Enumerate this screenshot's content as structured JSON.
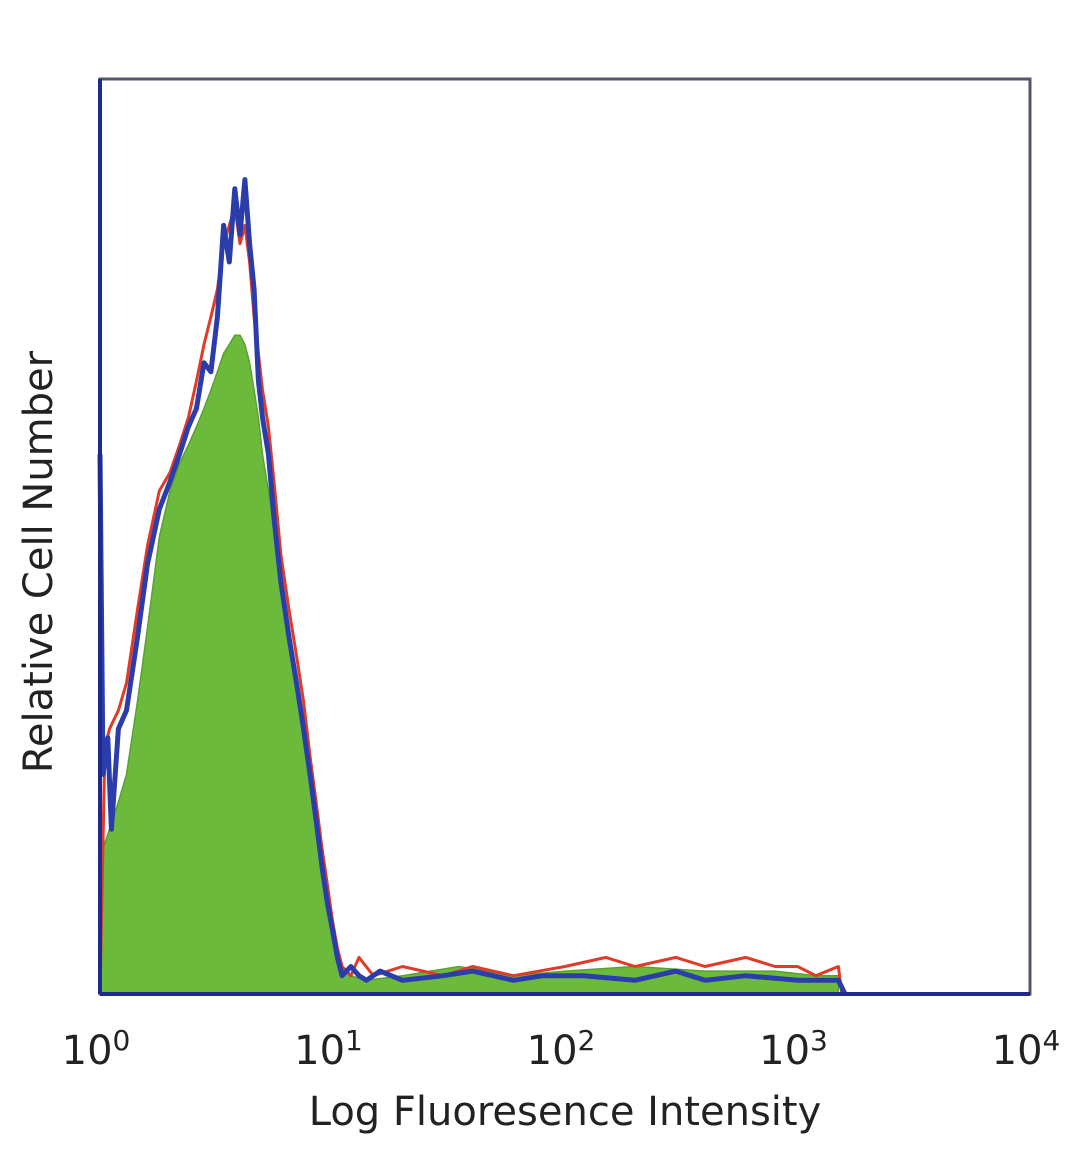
{
  "chart_data": {
    "type": "area",
    "title": "",
    "xlabel": "Log Fluoresence Intensity",
    "ylabel": "Relative Cell Number",
    "x_scale": "log",
    "xlim": [
      1,
      10000
    ],
    "ylim": [
      0,
      100
    ],
    "grid": false,
    "legend": "none",
    "x_ticks": [
      {
        "base": "10",
        "exp": "0",
        "value": 1
      },
      {
        "base": "10",
        "exp": "1",
        "value": 10
      },
      {
        "base": "10",
        "exp": "2",
        "value": 100
      },
      {
        "base": "10",
        "exp": "3",
        "value": 1000
      },
      {
        "base": "10",
        "exp": "4",
        "value": 10000
      }
    ],
    "series": [
      {
        "style": "filled",
        "color": "#6cba3c",
        "x": [
          1.0,
          1.1,
          1.2,
          1.3,
          1.45,
          1.6,
          1.8,
          2.0,
          2.2,
          2.4,
          2.6,
          2.8,
          3.0,
          3.2,
          3.4,
          3.6,
          3.8,
          4.0,
          4.2,
          4.4,
          4.6,
          4.8,
          5.0,
          5.3,
          5.6,
          6.0,
          6.5,
          7.0,
          7.5,
          8.0,
          8.5,
          9.0,
          9.5,
          10.0,
          10.5,
          11.0,
          12.0,
          14.0,
          20.0,
          35.0,
          60.0,
          100.0,
          200.0,
          400.0,
          800.0,
          1200.0,
          1500.0
        ],
        "y": [
          15,
          18,
          21,
          24,
          32,
          40,
          50,
          55,
          58,
          60,
          62,
          64,
          66,
          68,
          70,
          71,
          72,
          72,
          71,
          69,
          66,
          63,
          59,
          55,
          51,
          45,
          40,
          35,
          30,
          25,
          20,
          15,
          11,
          8,
          5,
          3,
          2,
          1.5,
          2,
          3,
          2,
          2.5,
          3,
          2.5,
          2.5,
          2,
          2
        ]
      },
      {
        "style": "line",
        "color": "#e03a28",
        "x": [
          1.0,
          1.05,
          1.1,
          1.2,
          1.3,
          1.45,
          1.6,
          1.8,
          2.0,
          2.2,
          2.4,
          2.6,
          2.8,
          3.0,
          3.2,
          3.4,
          3.6,
          3.8,
          4.0,
          4.2,
          4.4,
          4.6,
          4.8,
          5.0,
          5.3,
          5.6,
          6.0,
          6.5,
          7.0,
          7.5,
          8.0,
          8.5,
          9.0,
          9.5,
          10.0,
          10.5,
          11.0,
          12.0,
          13.0,
          15.0,
          20.0,
          30.0,
          40.0,
          60.0,
          100.0,
          150.0,
          200.0,
          300.0,
          400.0,
          600.0,
          800.0,
          1000.0,
          1200.0,
          1500.0,
          1550.0
        ],
        "y": [
          0,
          27,
          29,
          31,
          34,
          42,
          49,
          55,
          57,
          60,
          63,
          67,
          71,
          74,
          77,
          82,
          84,
          86,
          82,
          84,
          80,
          74,
          70,
          66,
          62,
          56,
          48,
          42,
          37,
          32,
          26,
          21,
          16,
          12,
          8,
          5,
          3,
          2,
          4,
          2,
          3,
          2,
          3,
          2,
          3,
          4,
          3,
          4,
          3,
          4,
          3,
          3,
          2,
          3,
          0
        ]
      },
      {
        "style": "line",
        "color": "#2b3cab",
        "x": [
          1.0,
          1.03,
          1.08,
          1.12,
          1.2,
          1.3,
          1.45,
          1.6,
          1.8,
          2.0,
          2.2,
          2.4,
          2.6,
          2.8,
          3.0,
          3.2,
          3.4,
          3.6,
          3.8,
          4.0,
          4.2,
          4.4,
          4.6,
          4.8,
          5.0,
          5.3,
          5.6,
          6.0,
          6.5,
          7.0,
          7.5,
          8.0,
          8.5,
          9.0,
          9.5,
          10.0,
          10.5,
          11.0,
          12.0,
          13.0,
          14.0,
          16.0,
          20.0,
          30.0,
          40.0,
          60.0,
          80.0,
          120.0,
          200.0,
          300.0,
          400.0,
          600.0,
          1000.0,
          1500.0,
          1600.0
        ],
        "y": [
          59,
          24,
          28,
          18,
          29,
          31,
          39,
          47,
          53,
          56,
          59,
          62,
          64,
          69,
          68,
          74,
          84,
          80,
          88,
          83,
          89,
          82,
          77,
          67,
          63,
          59,
          52,
          45,
          39,
          34,
          29,
          24,
          19,
          14,
          10,
          7,
          4,
          2,
          3,
          2,
          1.5,
          2.5,
          1.5,
          2,
          2.5,
          1.5,
          2,
          2,
          1.5,
          2.5,
          1.5,
          2,
          1.5,
          1.5,
          0
        ]
      }
    ]
  }
}
